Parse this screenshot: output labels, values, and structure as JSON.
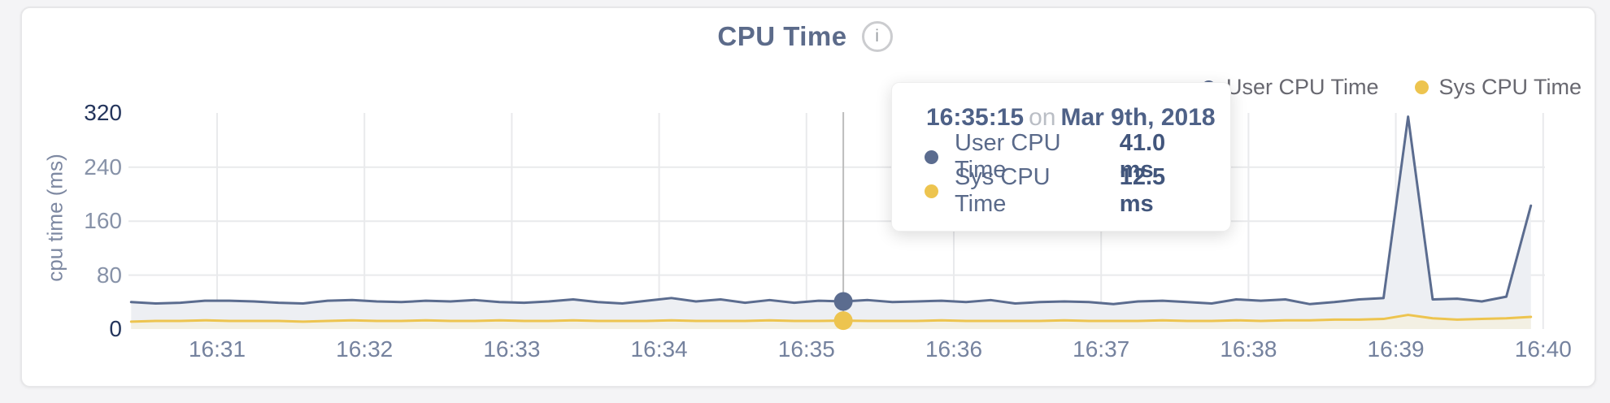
{
  "header": {
    "title": "CPU Time",
    "info_icon": "i"
  },
  "legend": {
    "items": [
      {
        "label": "User CPU Time",
        "color": "#5b6c8f"
      },
      {
        "label": "Sys CPU Time",
        "color": "#edc44f"
      }
    ]
  },
  "colors": {
    "user_line": "#5b6c8f",
    "user_fill": "#edeff3",
    "sys_line": "#edc44f",
    "sys_fill": "#f3f0e3",
    "grid": "#e9eaec",
    "hover_line": "#bdbdbd",
    "tick_dark": "#24355c",
    "tick_mid": "#8792a8"
  },
  "chart_data": {
    "type": "line",
    "title": "CPU Time",
    "ylabel": "cpu time (ms)",
    "xlabel": "",
    "ylim": [
      0,
      320
    ],
    "y_ticks": [
      0,
      80,
      160,
      240,
      320
    ],
    "x_ticks": [
      "16:31",
      "16:32",
      "16:33",
      "16:34",
      "16:35",
      "16:36",
      "16:37",
      "16:38",
      "16:39",
      "16:40"
    ],
    "grid": true,
    "legend_position": "top-right",
    "date": "Mar 9th, 2018",
    "x_times": [
      "16:30:25",
      "16:30:35",
      "16:30:45",
      "16:30:55",
      "16:31:05",
      "16:31:15",
      "16:31:25",
      "16:31:35",
      "16:31:45",
      "16:31:55",
      "16:32:05",
      "16:32:15",
      "16:32:25",
      "16:32:35",
      "16:32:45",
      "16:32:55",
      "16:33:05",
      "16:33:15",
      "16:33:25",
      "16:33:35",
      "16:33:45",
      "16:33:55",
      "16:34:05",
      "16:34:15",
      "16:34:25",
      "16:34:35",
      "16:34:45",
      "16:34:55",
      "16:35:05",
      "16:35:15",
      "16:35:25",
      "16:35:35",
      "16:35:45",
      "16:35:55",
      "16:36:05",
      "16:36:15",
      "16:36:25",
      "16:36:35",
      "16:36:45",
      "16:36:55",
      "16:37:05",
      "16:37:15",
      "16:37:25",
      "16:37:35",
      "16:37:45",
      "16:37:55",
      "16:38:05",
      "16:38:15",
      "16:38:25",
      "16:38:35",
      "16:38:45",
      "16:38:55",
      "16:39:05",
      "16:39:15",
      "16:39:25",
      "16:39:35",
      "16:39:45",
      "16:39:55"
    ],
    "series": [
      {
        "name": "User CPU Time",
        "color": "#5b6c8f",
        "fill": "#edeff3",
        "values": [
          40,
          38,
          39,
          42,
          42,
          41,
          39,
          38,
          42,
          43,
          41,
          40,
          42,
          41,
          43,
          40,
          39,
          41,
          44,
          40,
          38,
          42,
          46,
          41,
          44,
          39,
          43,
          39,
          42,
          41,
          43,
          40,
          41,
          42,
          40,
          43,
          38,
          40,
          41,
          40,
          37,
          41,
          42,
          40,
          38,
          44,
          42,
          44,
          37,
          40,
          44,
          46,
          315,
          44,
          45,
          41,
          48,
          183
        ]
      },
      {
        "name": "Sys CPU Time",
        "color": "#edc44f",
        "fill": "#f3f0e3",
        "values": [
          11,
          12,
          12,
          13,
          12,
          12,
          12,
          11,
          12,
          13,
          12,
          12,
          13,
          12,
          12,
          13,
          12,
          12,
          13,
          12,
          12,
          12,
          13,
          12,
          12,
          12,
          13,
          12,
          12,
          12.5,
          12,
          12,
          12,
          13,
          12,
          12,
          12,
          12,
          13,
          12,
          12,
          12,
          13,
          12,
          12,
          13,
          12,
          13,
          13,
          14,
          14,
          15,
          21,
          16,
          14,
          15,
          16,
          18
        ]
      }
    ]
  },
  "tooltip": {
    "time": "16:35:15",
    "preposition": "on",
    "date": "Mar 9th, 2018",
    "hover_index": 29,
    "rows": [
      {
        "label": "User CPU Time",
        "value": "41.0 ms",
        "color": "#5b6c8f"
      },
      {
        "label": "Sys CPU Time",
        "value": "12.5 ms",
        "color": "#edc44f"
      }
    ]
  }
}
